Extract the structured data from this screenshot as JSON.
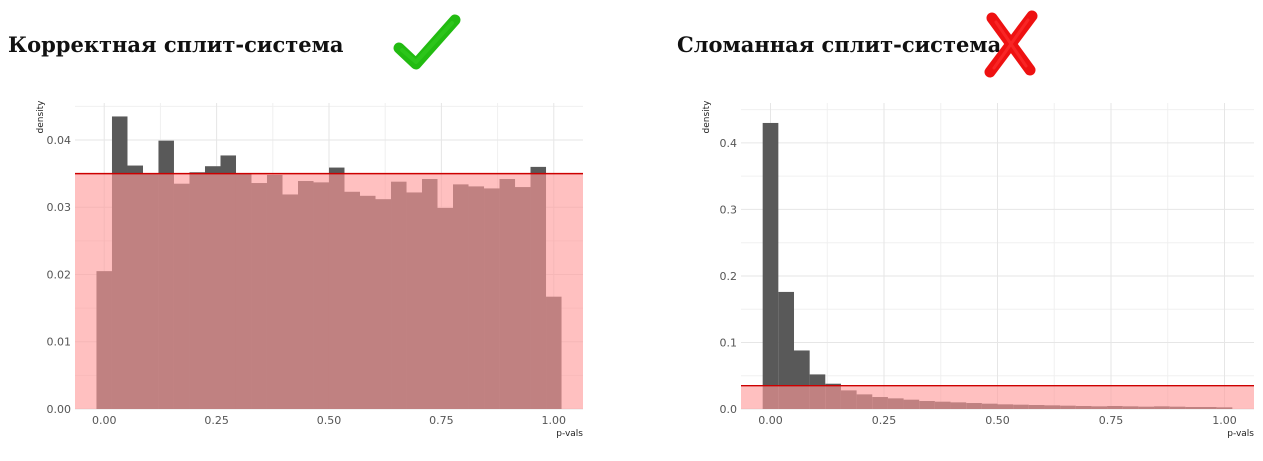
{
  "titles": {
    "left": "Корректная сплит-система",
    "right": "Сломанная сплит-система"
  },
  "icons": {
    "left": "check-mark-icon",
    "right": "cross-mark-icon"
  },
  "colors": {
    "bar": "#595959",
    "overlay": "#ff9a9a",
    "uniform_line": "#cc0000",
    "check": "#22bb11",
    "cross": "#ee1111",
    "grid": "#e6e6e6"
  },
  "chart_data": [
    {
      "type": "bar",
      "title": "",
      "xlabel": "p-vals",
      "ylabel": "density",
      "xlim": [
        -0.065,
        1.065
      ],
      "ylim": [
        0,
        0.0455
      ],
      "bin_width": 0.0345,
      "x_ticks": [
        0,
        0.25,
        0.5,
        0.75,
        1
      ],
      "x_tick_labels": [
        "0.00",
        "0.25",
        "0.50",
        "0.75",
        "1.00"
      ],
      "y_ticks": [
        0,
        0.01,
        0.02,
        0.03,
        0.04
      ],
      "y_tick_labels": [
        "0.00",
        "0.01",
        "0.02",
        "0.03",
        "0.04"
      ],
      "uniform_density": 0.035,
      "grid": true,
      "bin_centers": [
        0.0,
        0.0345,
        0.069,
        0.1034,
        0.1379,
        0.1724,
        0.2069,
        0.2414,
        0.2759,
        0.3103,
        0.3448,
        0.3793,
        0.4138,
        0.4483,
        0.4828,
        0.5172,
        0.5517,
        0.5862,
        0.6207,
        0.6552,
        0.6897,
        0.7241,
        0.7586,
        0.7931,
        0.8276,
        0.8621,
        0.8966,
        0.931,
        0.9655,
        1.0
      ],
      "values": [
        0.0205,
        0.0435,
        0.0362,
        0.035,
        0.0399,
        0.0335,
        0.0352,
        0.0361,
        0.0377,
        0.035,
        0.0336,
        0.0348,
        0.0319,
        0.0339,
        0.0337,
        0.0359,
        0.0323,
        0.0317,
        0.0312,
        0.0338,
        0.0322,
        0.0342,
        0.0299,
        0.0334,
        0.0331,
        0.0328,
        0.0342,
        0.033,
        0.036,
        0.0167
      ]
    },
    {
      "type": "bar",
      "title": "",
      "xlabel": "p-vals",
      "ylabel": "density",
      "xlim": [
        -0.065,
        1.065
      ],
      "ylim": [
        0,
        0.46
      ],
      "bin_width": 0.0345,
      "x_ticks": [
        0,
        0.25,
        0.5,
        0.75,
        1
      ],
      "x_tick_labels": [
        "0.00",
        "0.25",
        "0.50",
        "0.75",
        "1.00"
      ],
      "y_ticks": [
        0,
        0.1,
        0.2,
        0.3,
        0.4
      ],
      "y_tick_labels": [
        "0.0",
        "0.1",
        "0.2",
        "0.3",
        "0.4"
      ],
      "uniform_density": 0.035,
      "grid": true,
      "bin_centers": [
        0.0,
        0.0345,
        0.069,
        0.1034,
        0.1379,
        0.1724,
        0.2069,
        0.2414,
        0.2759,
        0.3103,
        0.3448,
        0.3793,
        0.4138,
        0.4483,
        0.4828,
        0.5172,
        0.5517,
        0.5862,
        0.6207,
        0.6552,
        0.6897,
        0.7241,
        0.7586,
        0.7931,
        0.8276,
        0.8621,
        0.8966,
        0.931,
        0.9655,
        1.0
      ],
      "values": [
        0.43,
        0.176,
        0.088,
        0.052,
        0.038,
        0.028,
        0.022,
        0.018,
        0.016,
        0.014,
        0.012,
        0.011,
        0.01,
        0.009,
        0.008,
        0.007,
        0.0065,
        0.006,
        0.0055,
        0.005,
        0.0045,
        0.004,
        0.0045,
        0.004,
        0.0035,
        0.004,
        0.0035,
        0.003,
        0.003,
        0.0025
      ]
    }
  ]
}
